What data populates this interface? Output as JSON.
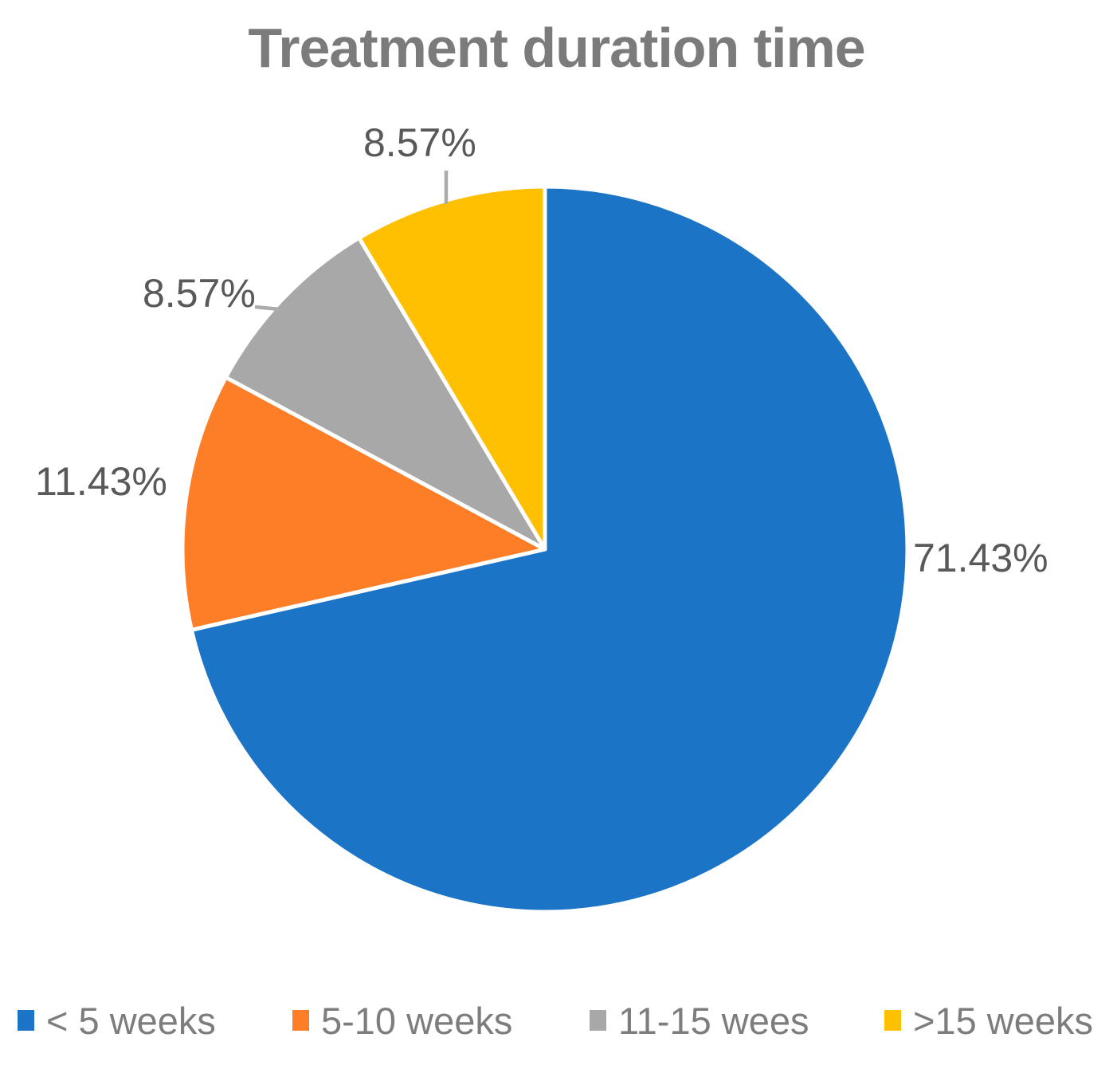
{
  "title": "Treatment duration time",
  "chart_data": {
    "type": "pie",
    "title": "Treatment duration time",
    "categories": [
      "< 5 weeks",
      "5-10 weeks",
      "11-15 wees",
      ">15 weeks"
    ],
    "values": [
      71.43,
      11.43,
      8.57,
      8.57
    ],
    "data_labels": [
      "71.43%",
      "11.43%",
      "8.57%",
      "8.57%"
    ],
    "colors": [
      "#1b74c5",
      "#fd7e27",
      "#a8a8a8",
      "#ffc002"
    ],
    "slice_border_color": "#ffffff",
    "start_angle_deg": 0,
    "direction": "clockwise",
    "legend_position": "bottom",
    "title_color": "#7b7b7b",
    "label_color": "#595959",
    "legend_text_color": "#7d7d7d",
    "leader_line_color": "#ababab"
  }
}
